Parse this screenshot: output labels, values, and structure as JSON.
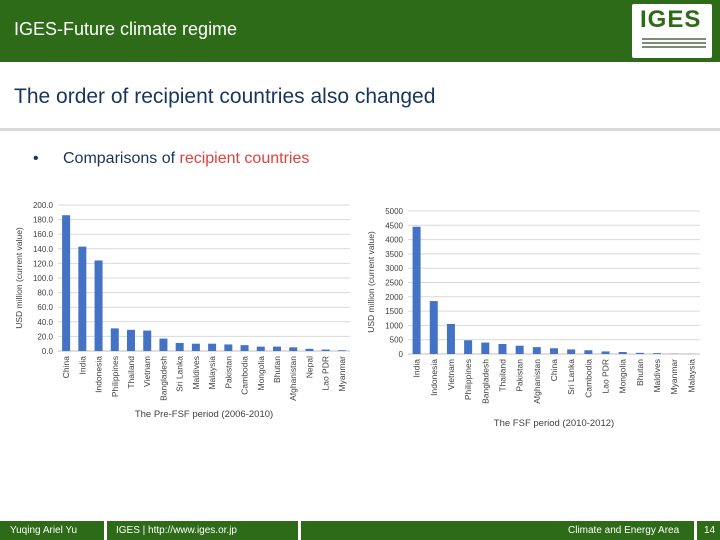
{
  "header": {
    "title": "IGES-Future climate regime",
    "logo": "IGES"
  },
  "slide": {
    "title": "The order of recipient countries also changed",
    "bullet": {
      "prefix": "Comparisons of",
      "accent": "recipient countries"
    }
  },
  "footer": {
    "author": "Yuqing Ariel Yu",
    "org": "IGES | http://www.iges.or.jp",
    "area": "Climate and Energy Area",
    "page": "14"
  },
  "colors": {
    "header": "#2e6b18",
    "bar": "#4472c4",
    "accent": "#e1403c",
    "title": "#17365d"
  },
  "chart_data": [
    {
      "type": "bar",
      "ylabel": "USD million (current value)",
      "xlabel": "The Pre-FSF period (2006-2010)",
      "ylim": [
        0,
        200
      ],
      "yticks": [
        "0.0",
        "20.0",
        "40.0",
        "60.0",
        "80.0",
        "100.0",
        "120.0",
        "140.0",
        "160.0",
        "180.0",
        "200.0"
      ],
      "grid": true,
      "categories": [
        "China",
        "India",
        "Indonesia",
        "Philippines",
        "Thailand",
        "Vietnam",
        "Bangladesh",
        "Sri Lanka",
        "Maldives",
        "Malaysia",
        "Pakistan",
        "Cambodia",
        "Mongolia",
        "Bhutan",
        "Afghanistan",
        "Nepal",
        "Lao PDR",
        "Myanmar"
      ],
      "values": [
        186,
        143,
        124,
        31,
        29,
        28,
        17,
        11,
        10,
        10,
        9,
        8,
        6,
        6,
        5,
        3,
        2,
        1
      ]
    },
    {
      "type": "bar",
      "ylabel": "USD million (current value)",
      "xlabel": "The FSF period (2010-2012)",
      "ylim": [
        0,
        5000
      ],
      "yticks": [
        "0",
        "500",
        "1000",
        "1500",
        "2000",
        "2500",
        "3000",
        "3500",
        "4000",
        "4500",
        "5000"
      ],
      "grid": true,
      "categories": [
        "India",
        "Indonesia",
        "Vietnam",
        "Philippines",
        "Bangladesh",
        "Thailand",
        "Pakistan",
        "Afghanistan",
        "China",
        "Sri Lanka",
        "Cambodia",
        "Lao PDR",
        "Mongolia",
        "Bhutan",
        "Maldives",
        "Myanmar",
        "Malaysia"
      ],
      "values": [
        4450,
        1850,
        1050,
        480,
        400,
        350,
        290,
        240,
        200,
        160,
        130,
        90,
        70,
        40,
        30,
        10,
        5
      ]
    }
  ]
}
